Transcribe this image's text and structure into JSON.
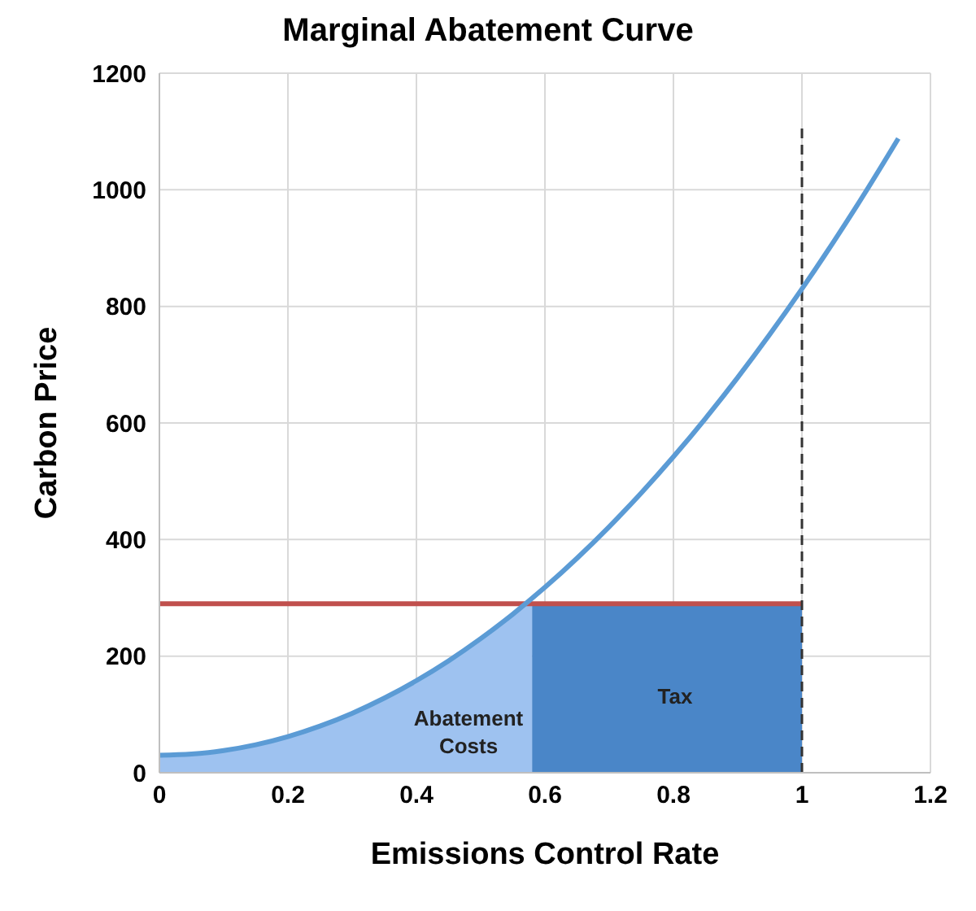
{
  "chart_data": {
    "type": "line",
    "title": "Marginal Abatement Curve",
    "xlabel": "Emissions Control Rate",
    "ylabel": "Carbon Price",
    "xlim": [
      0,
      1.2
    ],
    "xticks": [
      0,
      0.2,
      0.4,
      0.6,
      0.8,
      1,
      1.2
    ],
    "ylim": [
      0,
      1200
    ],
    "yticks": [
      0,
      200,
      400,
      600,
      800,
      1000,
      1200
    ],
    "grid": true,
    "series": [
      {
        "type": "area",
        "color": "#9ec2f0",
        "x": [
          0,
          0.1,
          0.2,
          0.3,
          0.4,
          0.5,
          0.58
        ],
        "values": [
          30,
          38,
          62,
          102,
          158,
          230,
          295
        ]
      },
      {
        "type": "area",
        "color": "#4a86c8",
        "x": [
          0.58,
          1
        ],
        "values": [
          290,
          290
        ]
      },
      {
        "color": "#c0504d",
        "x": [
          0,
          1
        ],
        "values": [
          290,
          290
        ],
        "line_style": "solid"
      },
      {
        "color": "#333333",
        "x": [
          1,
          1
        ],
        "values": [
          0,
          1110
        ],
        "line_style": "dashed"
      },
      {
        "color": "#5b9bd5",
        "x": [
          0,
          0.05,
          0.1,
          0.15,
          0.2,
          0.25,
          0.3,
          0.35,
          0.4,
          0.45,
          0.5,
          0.55,
          0.6,
          0.65,
          0.7,
          0.75,
          0.8,
          0.85,
          0.9,
          0.95,
          1,
          1.05,
          1.1,
          1.15
        ],
        "values": [
          30,
          32,
          38,
          48,
          62,
          80,
          102,
          128,
          158,
          192,
          230,
          272,
          318,
          368,
          422,
          480,
          542,
          608,
          678,
          752,
          830,
          912,
          998,
          1088
        ],
        "line_style": "solid"
      }
    ],
    "annotations": [
      "Tax",
      "Abatement Costs"
    ]
  }
}
